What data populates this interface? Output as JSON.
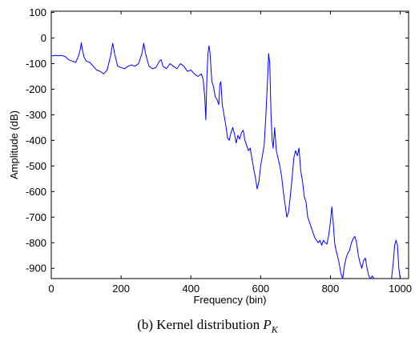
{
  "caption": {
    "prefix": "(b) Kernel distribution ",
    "variable": "P",
    "subscript": "K"
  },
  "chart_data": {
    "type": "line",
    "xlabel": "Frequency (bin)",
    "ylabel": "Amplitude (dB)",
    "xlim": [
      0,
      1024
    ],
    "ylim": [
      -940,
      105
    ],
    "xticks": [
      0,
      200,
      400,
      600,
      800,
      1000
    ],
    "yticks": [
      100,
      0,
      -100,
      -200,
      -300,
      -400,
      -500,
      -600,
      -700,
      -800,
      -900
    ],
    "grid": false,
    "series": [
      {
        "color": "#0000ff",
        "points": [
          [
            0,
            -70
          ],
          [
            10,
            -68
          ],
          [
            20,
            -69
          ],
          [
            30,
            -68
          ],
          [
            40,
            -72
          ],
          [
            50,
            -85
          ],
          [
            60,
            -90
          ],
          [
            70,
            -95
          ],
          [
            78,
            -70
          ],
          [
            83,
            -45
          ],
          [
            86,
            -18
          ],
          [
            89,
            -45
          ],
          [
            94,
            -75
          ],
          [
            100,
            -90
          ],
          [
            110,
            -95
          ],
          [
            120,
            -110
          ],
          [
            130,
            -125
          ],
          [
            140,
            -130
          ],
          [
            150,
            -140
          ],
          [
            160,
            -125
          ],
          [
            170,
            -70
          ],
          [
            176,
            -20
          ],
          [
            182,
            -65
          ],
          [
            190,
            -110
          ],
          [
            200,
            -115
          ],
          [
            210,
            -120
          ],
          [
            220,
            -110
          ],
          [
            230,
            -105
          ],
          [
            240,
            -110
          ],
          [
            250,
            -100
          ],
          [
            260,
            -60
          ],
          [
            265,
            -20
          ],
          [
            270,
            -60
          ],
          [
            280,
            -110
          ],
          [
            290,
            -120
          ],
          [
            300,
            -115
          ],
          [
            310,
            -90
          ],
          [
            315,
            -85
          ],
          [
            320,
            -110
          ],
          [
            330,
            -120
          ],
          [
            340,
            -100
          ],
          [
            350,
            -110
          ],
          [
            360,
            -120
          ],
          [
            370,
            -100
          ],
          [
            380,
            -110
          ],
          [
            390,
            -130
          ],
          [
            400,
            -125
          ],
          [
            410,
            -140
          ],
          [
            420,
            -150
          ],
          [
            430,
            -140
          ],
          [
            435,
            -160
          ],
          [
            440,
            -230
          ],
          [
            443,
            -320
          ],
          [
            446,
            -150
          ],
          [
            449,
            -60
          ],
          [
            452,
            -30
          ],
          [
            455,
            -60
          ],
          [
            460,
            -170
          ],
          [
            465,
            -190
          ],
          [
            470,
            -230
          ],
          [
            475,
            -240
          ],
          [
            480,
            -260
          ],
          [
            483,
            -180
          ],
          [
            486,
            -170
          ],
          [
            490,
            -260
          ],
          [
            495,
            -300
          ],
          [
            500,
            -340
          ],
          [
            505,
            -390
          ],
          [
            510,
            -400
          ],
          [
            515,
            -370
          ],
          [
            520,
            -350
          ],
          [
            525,
            -375
          ],
          [
            530,
            -410
          ],
          [
            535,
            -380
          ],
          [
            540,
            -395
          ],
          [
            545,
            -370
          ],
          [
            550,
            -360
          ],
          [
            555,
            -400
          ],
          [
            560,
            -420
          ],
          [
            565,
            -440
          ],
          [
            570,
            -430
          ],
          [
            575,
            -470
          ],
          [
            580,
            -510
          ],
          [
            585,
            -545
          ],
          [
            590,
            -590
          ],
          [
            595,
            -560
          ],
          [
            600,
            -500
          ],
          [
            605,
            -460
          ],
          [
            610,
            -420
          ],
          [
            615,
            -300
          ],
          [
            620,
            -160
          ],
          [
            623,
            -60
          ],
          [
            626,
            -100
          ],
          [
            630,
            -310
          ],
          [
            633,
            -400
          ],
          [
            636,
            -430
          ],
          [
            640,
            -350
          ],
          [
            645,
            -440
          ],
          [
            650,
            -470
          ],
          [
            655,
            -500
          ],
          [
            660,
            -540
          ],
          [
            665,
            -600
          ],
          [
            670,
            -650
          ],
          [
            675,
            -700
          ],
          [
            680,
            -680
          ],
          [
            685,
            -620
          ],
          [
            690,
            -550
          ],
          [
            695,
            -470
          ],
          [
            700,
            -440
          ],
          [
            705,
            -460
          ],
          [
            710,
            -430
          ],
          [
            715,
            -520
          ],
          [
            720,
            -560
          ],
          [
            725,
            -620
          ],
          [
            730,
            -640
          ],
          [
            735,
            -700
          ],
          [
            740,
            -720
          ],
          [
            745,
            -740
          ],
          [
            750,
            -760
          ],
          [
            755,
            -780
          ],
          [
            760,
            -790
          ],
          [
            765,
            -800
          ],
          [
            770,
            -790
          ],
          [
            775,
            -810
          ],
          [
            780,
            -790
          ],
          [
            785,
            -800
          ],
          [
            790,
            -805
          ],
          [
            795,
            -770
          ],
          [
            800,
            -720
          ],
          [
            804,
            -660
          ],
          [
            808,
            -720
          ],
          [
            812,
            -800
          ],
          [
            816,
            -830
          ],
          [
            820,
            -850
          ],
          [
            825,
            -880
          ],
          [
            830,
            -920
          ],
          [
            835,
            -940
          ],
          [
            840,
            -890
          ],
          [
            845,
            -860
          ],
          [
            850,
            -840
          ],
          [
            855,
            -830
          ],
          [
            860,
            -800
          ],
          [
            865,
            -785
          ],
          [
            870,
            -775
          ],
          [
            875,
            -800
          ],
          [
            880,
            -850
          ],
          [
            885,
            -880
          ],
          [
            890,
            -900
          ],
          [
            895,
            -870
          ],
          [
            900,
            -860
          ],
          [
            905,
            -900
          ],
          [
            910,
            -930
          ],
          [
            915,
            -940
          ],
          [
            920,
            -930
          ],
          [
            925,
            -940
          ]
        ]
      },
      {
        "color": "#0000ff",
        "points": [
          [
            975,
            -940
          ],
          [
            980,
            -880
          ],
          [
            984,
            -810
          ],
          [
            988,
            -790
          ],
          [
            992,
            -810
          ],
          [
            996,
            -900
          ],
          [
            1000,
            -940
          ]
        ]
      }
    ]
  }
}
